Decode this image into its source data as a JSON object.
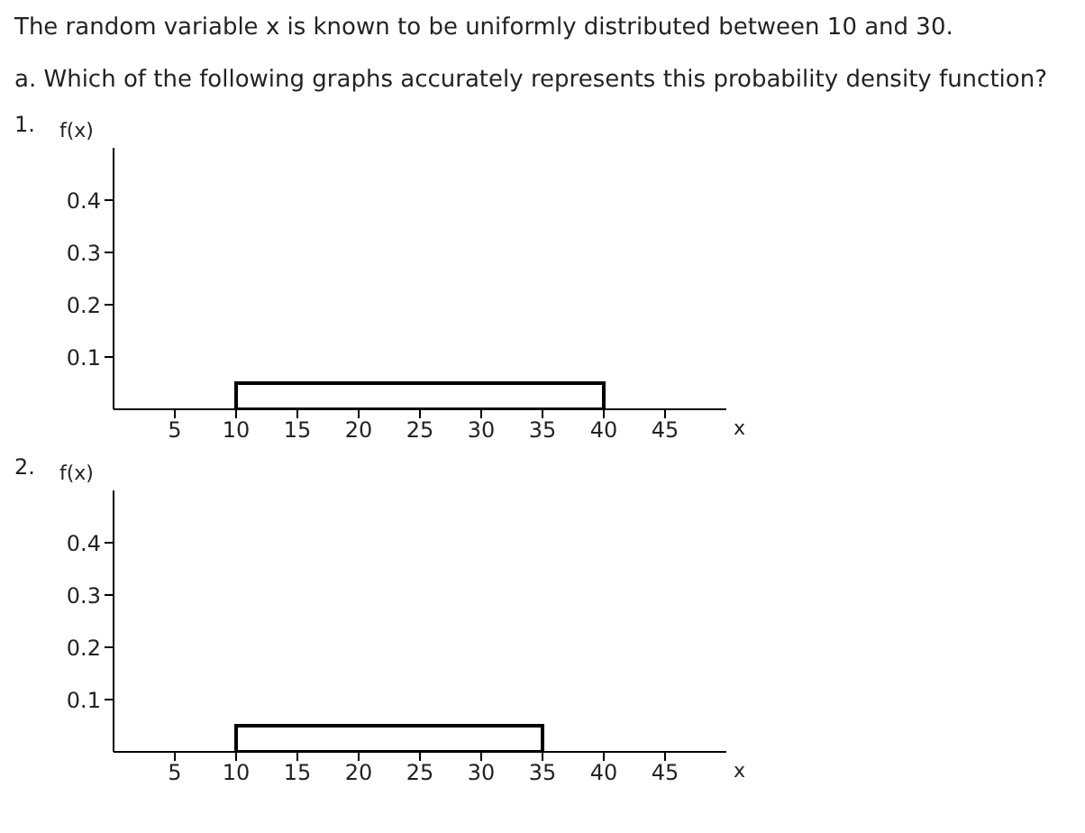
{
  "chart_data": [
    {
      "type": "histogram",
      "title": "The random variable x is known to be uniformly distributed between 10 and 30.",
      "subtitle": "a. Which of the following graphs accurately represents this probability density function?",
      "annotations": [
        "1."
      ],
      "xlabel": "x",
      "ylabel": "f(x)",
      "bins": [
        10,
        40
      ],
      "values": [
        0.05
      ],
      "color": "#000000",
      "xlim": [
        0,
        50
      ],
      "xticks": [
        5,
        10,
        15,
        20,
        25,
        30,
        35,
        40,
        45
      ],
      "ylim": [
        0,
        0.5
      ],
      "yticks": [
        0.1,
        0.2,
        0.3,
        0.4
      ],
      "grid": false,
      "legend": false
    },
    {
      "type": "histogram",
      "annotations": [
        "2."
      ],
      "xlabel": "x",
      "ylabel": "f(x)",
      "bins": [
        10,
        35
      ],
      "values": [
        0.05
      ],
      "color": "#000000",
      "xlim": [
        0,
        50
      ],
      "xticks": [
        5,
        10,
        15,
        20,
        25,
        30,
        35,
        40,
        45
      ],
      "ylim": [
        0,
        0.5
      ],
      "yticks": [
        0.1,
        0.2,
        0.3,
        0.4
      ],
      "grid": false,
      "legend": false
    }
  ]
}
